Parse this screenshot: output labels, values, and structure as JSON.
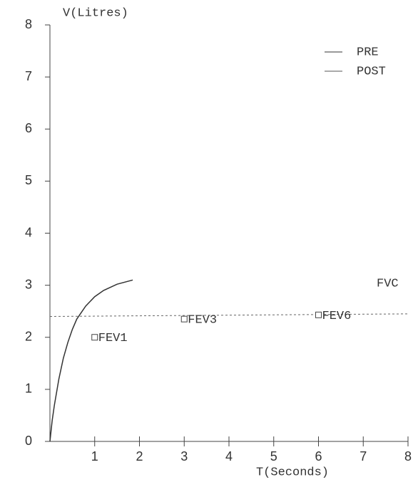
{
  "chart_data": {
    "type": "line",
    "y_label": "V(Litres)",
    "x_label": "T(Seconds)",
    "xlim": [
      0,
      8
    ],
    "ylim": [
      0,
      8
    ],
    "xticks": [
      1,
      2,
      3,
      4,
      5,
      6,
      7,
      8
    ],
    "yticks": [
      0,
      1,
      2,
      3,
      4,
      5,
      6,
      7,
      8
    ],
    "series": [
      {
        "name": "PRE",
        "color": "#333333",
        "x": [
          0,
          0.05,
          0.1,
          0.2,
          0.3,
          0.4,
          0.5,
          0.6,
          0.8,
          1.0,
          1.2,
          1.5,
          1.85
        ],
        "values": [
          0,
          0.4,
          0.7,
          1.2,
          1.6,
          1.9,
          2.15,
          2.35,
          2.6,
          2.78,
          2.9,
          3.02,
          3.1
        ]
      },
      {
        "name": "POST",
        "color": "#555555",
        "x": [],
        "values": []
      }
    ],
    "reference_line": {
      "label": "FVC",
      "x": [
        0,
        8
      ],
      "values": [
        2.4,
        2.45
      ],
      "color": "#666666"
    },
    "points": [
      {
        "label": "FEV1",
        "x": 1,
        "value": 2.0
      },
      {
        "label": "FEV3",
        "x": 3,
        "value": 2.35
      },
      {
        "label": "FEV6",
        "x": 6,
        "value": 2.43
      }
    ]
  }
}
